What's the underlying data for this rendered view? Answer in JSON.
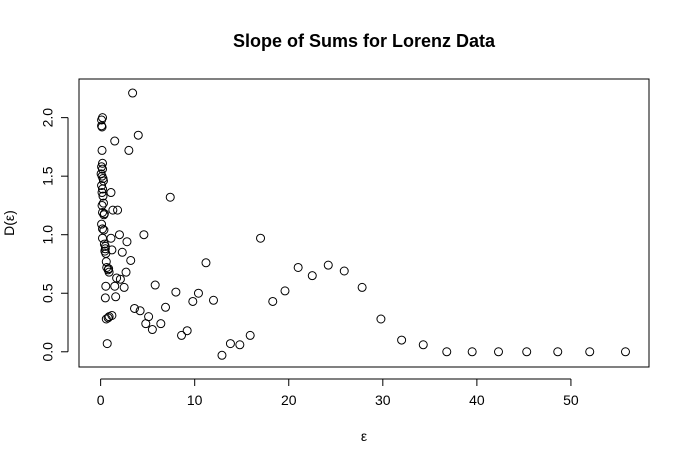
{
  "chart_data": {
    "type": "scatter",
    "title": "Slope of Sums for Lorenz Data",
    "xlabel": "ε",
    "ylabel": "D(ε)",
    "xlim": [
      -2.3,
      58.3
    ],
    "ylim": [
      -0.13,
      2.33
    ],
    "grid": false,
    "legend": "none",
    "x_ticks": [
      0,
      10,
      20,
      30,
      40,
      50
    ],
    "y_ticks": [
      0.0,
      0.5,
      1.0,
      1.5,
      2.0
    ],
    "x_tick_labels": [
      "0",
      "10",
      "20",
      "30",
      "40",
      "50"
    ],
    "y_tick_labels": [
      "0.0",
      "0.5",
      "1.0",
      "1.5",
      "2.0"
    ],
    "series": [
      {
        "x": [
          0.1,
          0.15,
          0.2,
          0.1,
          0.15,
          0.2,
          0.1,
          0.2,
          0.05,
          0.15,
          0.25,
          0.3,
          0.1,
          0.2,
          0.15,
          0.25,
          0.3,
          0.15,
          0.2,
          0.35,
          0.4,
          0.1,
          0.2,
          0.35,
          0.2,
          0.4,
          0.5,
          0.45,
          0.5,
          0.55,
          0.6,
          0.65,
          0.8,
          0.85,
          0.9,
          0.55,
          0.5,
          0.7,
          0.8,
          0.6,
          0.9,
          1.2,
          1.1,
          1.1,
          1.3,
          1.5,
          1.8,
          2.0,
          2.3,
          1.2,
          1.5,
          1.6,
          1.7,
          2.1,
          2.5,
          2.7,
          2.8,
          3.0,
          3.2,
          3.4,
          3.6,
          4.0,
          4.2,
          4.6,
          4.8,
          5.1,
          5.5,
          5.8,
          6.4,
          6.9,
          7.4,
          8.0,
          8.6,
          9.2,
          9.8,
          10.4,
          11.2,
          12.0,
          12.9,
          13.8,
          14.8,
          15.9,
          17.0,
          18.3,
          19.6,
          21.0,
          22.5,
          24.2,
          25.9,
          27.8,
          29.8,
          32.0,
          34.3,
          36.8,
          39.5,
          42.3,
          45.3,
          48.6,
          52.0,
          55.8
        ],
        "y": [
          1.93,
          1.92,
          2.0,
          1.98,
          1.72,
          1.61,
          1.58,
          1.56,
          1.52,
          1.5,
          1.48,
          1.46,
          1.42,
          1.39,
          1.36,
          1.33,
          1.27,
          1.25,
          1.19,
          1.17,
          1.18,
          1.09,
          1.05,
          1.04,
          0.97,
          0.92,
          0.9,
          0.86,
          0.88,
          0.84,
          0.77,
          0.72,
          0.7,
          0.71,
          0.68,
          0.56,
          0.46,
          0.07,
          0.29,
          0.28,
          0.3,
          0.31,
          0.97,
          1.36,
          1.21,
          1.8,
          1.21,
          1.0,
          0.85,
          0.87,
          0.56,
          0.47,
          0.63,
          0.62,
          0.55,
          0.68,
          0.94,
          1.72,
          0.78,
          2.21,
          0.37,
          1.85,
          0.35,
          1.0,
          0.24,
          0.3,
          0.19,
          0.57,
          0.24,
          0.38,
          1.32,
          0.51,
          0.14,
          0.18,
          0.43,
          0.5,
          0.76,
          0.44,
          -0.03,
          0.07,
          0.06,
          0.14,
          0.97,
          0.43,
          0.52,
          0.72,
          0.65,
          0.74,
          0.69,
          0.55,
          0.28,
          0.1,
          0.06,
          0.0,
          0.0,
          0.0,
          0.0,
          0.0,
          0.0,
          0.0
        ]
      }
    ]
  }
}
